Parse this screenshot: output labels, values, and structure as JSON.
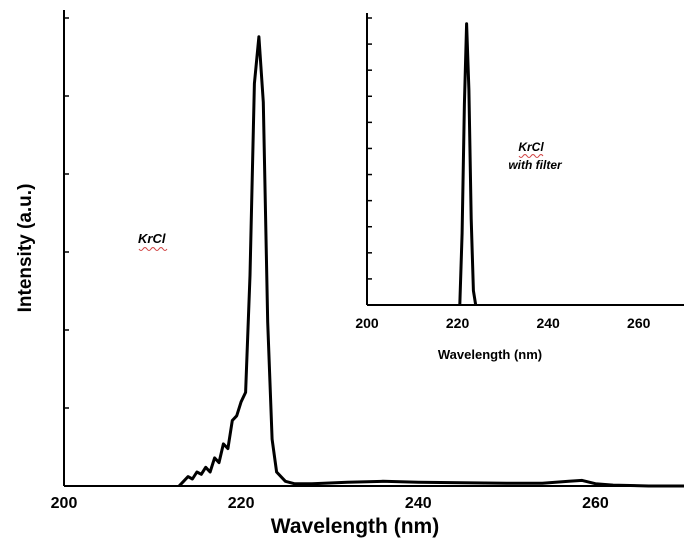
{
  "chart_data": [
    {
      "type": "line",
      "xlabel": "Wavelength (nm)",
      "ylabel": "Intensity (a.u.)",
      "xlim": [
        200,
        270
      ],
      "ylim": [
        0,
        1.0
      ],
      "xticks": [
        "200",
        "220",
        "240",
        "260"
      ],
      "annotation": "KrCl",
      "grid": false,
      "series": [
        {
          "x": [
            213,
            213.5,
            214,
            214.5,
            215,
            215.5,
            216,
            216.5,
            217,
            217.5,
            218,
            218.5,
            219,
            219.5,
            220,
            220.5,
            221,
            221.5,
            222,
            222.5,
            223,
            223.5,
            224,
            225,
            226,
            228,
            232,
            236,
            240,
            245,
            250,
            254,
            257,
            258.5,
            260,
            262,
            266,
            270
          ],
          "y": [
            0.0,
            0.01,
            0.02,
            0.015,
            0.03,
            0.025,
            0.04,
            0.03,
            0.06,
            0.05,
            0.09,
            0.08,
            0.14,
            0.15,
            0.18,
            0.2,
            0.45,
            0.86,
            0.96,
            0.82,
            0.35,
            0.1,
            0.03,
            0.01,
            0.005,
            0.005,
            0.008,
            0.01,
            0.008,
            0.007,
            0.006,
            0.006,
            0.01,
            0.012,
            0.005,
            0.002,
            0.0,
            0.0
          ]
        }
      ]
    },
    {
      "type": "line",
      "xlabel": "Wavelength (nm)",
      "xlim": [
        200,
        270
      ],
      "ylim": [
        0,
        1.0
      ],
      "xticks": [
        "200",
        "220",
        "240",
        "260"
      ],
      "annotation_line1": "KrCl",
      "annotation_line2": "with filter",
      "grid": false,
      "series": [
        {
          "x": [
            220.5,
            221,
            221.5,
            222,
            222.5,
            223,
            223.5,
            224
          ],
          "y": [
            0.0,
            0.25,
            0.7,
            0.98,
            0.75,
            0.3,
            0.05,
            0.0
          ]
        }
      ]
    }
  ]
}
